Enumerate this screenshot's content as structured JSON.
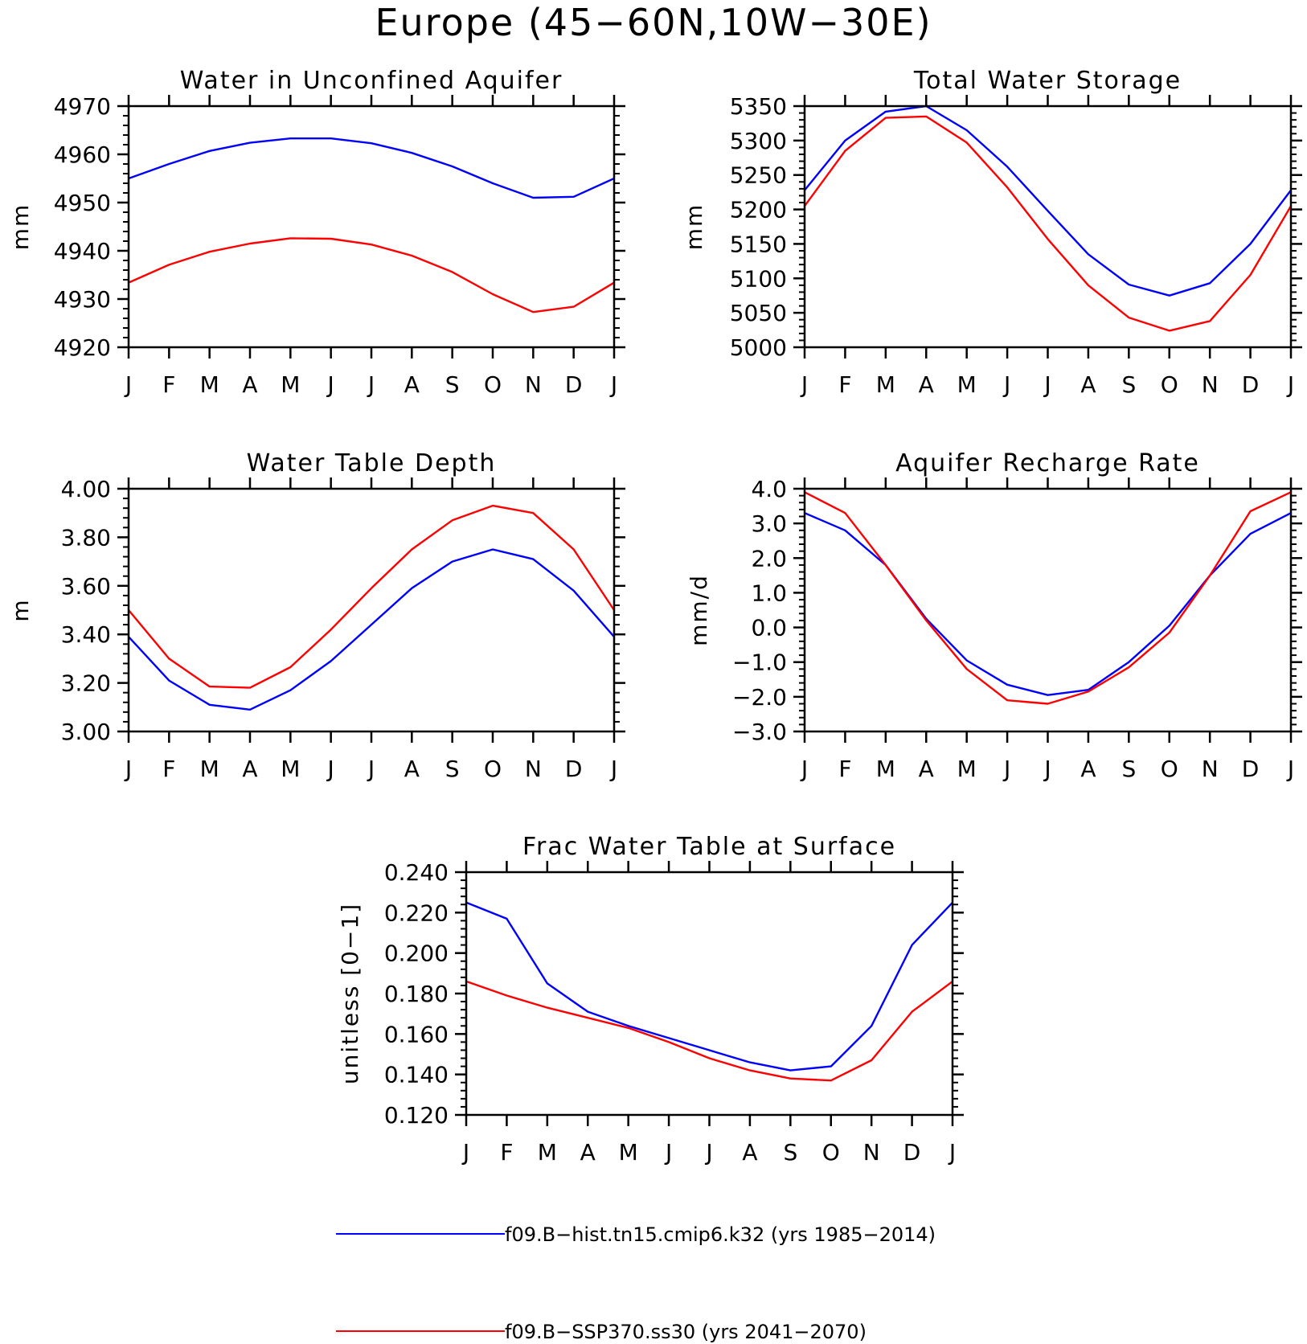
{
  "figure_title": "Europe (45−60N,10W−30E)",
  "colors": {
    "hist": "#0000ff",
    "ssp": "#ff0000",
    "axes": "#000000"
  },
  "legend": [
    {
      "label": "f09.B−hist.tn15.cmip6.k32 (yrs 1985−2014)",
      "color": "#0000ff"
    },
    {
      "label": "f09.B−SSP370.ss30 (yrs 2041−2070)",
      "color": "#ff0000"
    }
  ],
  "chart_data": [
    {
      "type": "line",
      "title": "Water in Unconfined Aquifer",
      "ylabel": "mm",
      "x": [
        "J",
        "F",
        "M",
        "A",
        "M",
        "J",
        "J",
        "A",
        "S",
        "O",
        "N",
        "D",
        "J"
      ],
      "ylim": [
        4920,
        4970
      ],
      "yticks": [
        4920,
        4930,
        4940,
        4950,
        4960,
        4970
      ],
      "ytick_labels": [
        "4920",
        "4930",
        "4940",
        "4950",
        "4960",
        "4970"
      ],
      "series": [
        {
          "key": "hist",
          "color": "#0000ff",
          "values": [
            4955.0,
            4958.0,
            4960.7,
            4962.4,
            4963.3,
            4963.3,
            4962.3,
            4960.3,
            4957.5,
            4954.0,
            4951.0,
            4951.2,
            4955.0
          ]
        },
        {
          "key": "ssp",
          "color": "#ff0000",
          "values": [
            4933.4,
            4937.1,
            4939.8,
            4941.5,
            4942.6,
            4942.5,
            4941.3,
            4939.0,
            4935.6,
            4931.0,
            4927.3,
            4928.4,
            4933.4
          ]
        }
      ]
    },
    {
      "type": "line",
      "title": "Total Water Storage",
      "ylabel": "mm",
      "x": [
        "J",
        "F",
        "M",
        "A",
        "M",
        "J",
        "J",
        "A",
        "S",
        "O",
        "N",
        "D",
        "J"
      ],
      "ylim": [
        5000,
        5350
      ],
      "yticks": [
        5000,
        5050,
        5100,
        5150,
        5200,
        5250,
        5300,
        5350
      ],
      "ytick_labels": [
        "5000",
        "5050",
        "5100",
        "5150",
        "5200",
        "5250",
        "5300",
        "5350"
      ],
      "series": [
        {
          "key": "hist",
          "color": "#0000ff",
          "values": [
            5228,
            5300,
            5342,
            5350,
            5315,
            5262,
            5198,
            5135,
            5091,
            5075,
            5093,
            5150,
            5228
          ]
        },
        {
          "key": "ssp",
          "color": "#ff0000",
          "values": [
            5205,
            5285,
            5333,
            5335,
            5297,
            5232,
            5157,
            5090,
            5043,
            5024,
            5038,
            5105,
            5205
          ]
        }
      ]
    },
    {
      "type": "line",
      "title": "Water Table Depth",
      "ylabel": "m",
      "x": [
        "J",
        "F",
        "M",
        "A",
        "M",
        "J",
        "J",
        "A",
        "S",
        "O",
        "N",
        "D",
        "J"
      ],
      "ylim": [
        3.0,
        4.0
      ],
      "yticks": [
        3.0,
        3.2,
        3.4,
        3.6,
        3.8,
        4.0
      ],
      "ytick_labels": [
        "3.00",
        "3.20",
        "3.40",
        "3.60",
        "3.80",
        "4.00"
      ],
      "series": [
        {
          "key": "hist",
          "color": "#0000ff",
          "values": [
            3.39,
            3.21,
            3.11,
            3.09,
            3.17,
            3.29,
            3.44,
            3.59,
            3.7,
            3.75,
            3.71,
            3.58,
            3.39
          ]
        },
        {
          "key": "ssp",
          "color": "#ff0000",
          "values": [
            3.5,
            3.3,
            3.185,
            3.18,
            3.265,
            3.42,
            3.59,
            3.75,
            3.87,
            3.93,
            3.9,
            3.75,
            3.5
          ]
        }
      ]
    },
    {
      "type": "line",
      "title": "Aquifer Recharge Rate",
      "ylabel": "mm/d",
      "x": [
        "J",
        "F",
        "M",
        "A",
        "M",
        "J",
        "J",
        "A",
        "S",
        "O",
        "N",
        "D",
        "J"
      ],
      "ylim": [
        -3.0,
        4.0
      ],
      "yticks": [
        -3.0,
        -2.0,
        -1.0,
        0.0,
        1.0,
        2.0,
        3.0,
        4.0
      ],
      "ytick_labels": [
        "−3.0",
        "−2.0",
        "−1.0",
        "0.0",
        "1.0",
        "2.0",
        "3.0",
        "4.0"
      ],
      "series": [
        {
          "key": "hist",
          "color": "#0000ff",
          "values": [
            3.3,
            2.8,
            1.8,
            0.25,
            -0.95,
            -1.65,
            -1.95,
            -1.8,
            -1.0,
            0.05,
            1.5,
            2.7,
            3.3
          ]
        },
        {
          "key": "ssp",
          "color": "#ff0000",
          "values": [
            3.9,
            3.3,
            1.8,
            0.2,
            -1.2,
            -2.1,
            -2.2,
            -1.85,
            -1.15,
            -0.15,
            1.5,
            3.35,
            3.9
          ]
        }
      ]
    },
    {
      "type": "line",
      "title": "Frac Water Table at Surface",
      "ylabel": "unitless [0−1]",
      "x": [
        "J",
        "F",
        "M",
        "A",
        "M",
        "J",
        "J",
        "A",
        "S",
        "O",
        "N",
        "D",
        "J"
      ],
      "ylim": [
        0.12,
        0.24
      ],
      "yticks": [
        0.12,
        0.14,
        0.16,
        0.18,
        0.2,
        0.22,
        0.24
      ],
      "ytick_labels": [
        "0.120",
        "0.140",
        "0.160",
        "0.180",
        "0.200",
        "0.220",
        "0.240"
      ],
      "series": [
        {
          "key": "hist",
          "color": "#0000ff",
          "values": [
            0.225,
            0.217,
            0.185,
            0.171,
            0.164,
            0.158,
            0.152,
            0.146,
            0.142,
            0.144,
            0.164,
            0.204,
            0.225
          ]
        },
        {
          "key": "ssp",
          "color": "#ff0000",
          "values": [
            0.186,
            0.179,
            0.173,
            0.168,
            0.163,
            0.156,
            0.148,
            0.142,
            0.138,
            0.137,
            0.147,
            0.171,
            0.186
          ]
        }
      ]
    }
  ]
}
